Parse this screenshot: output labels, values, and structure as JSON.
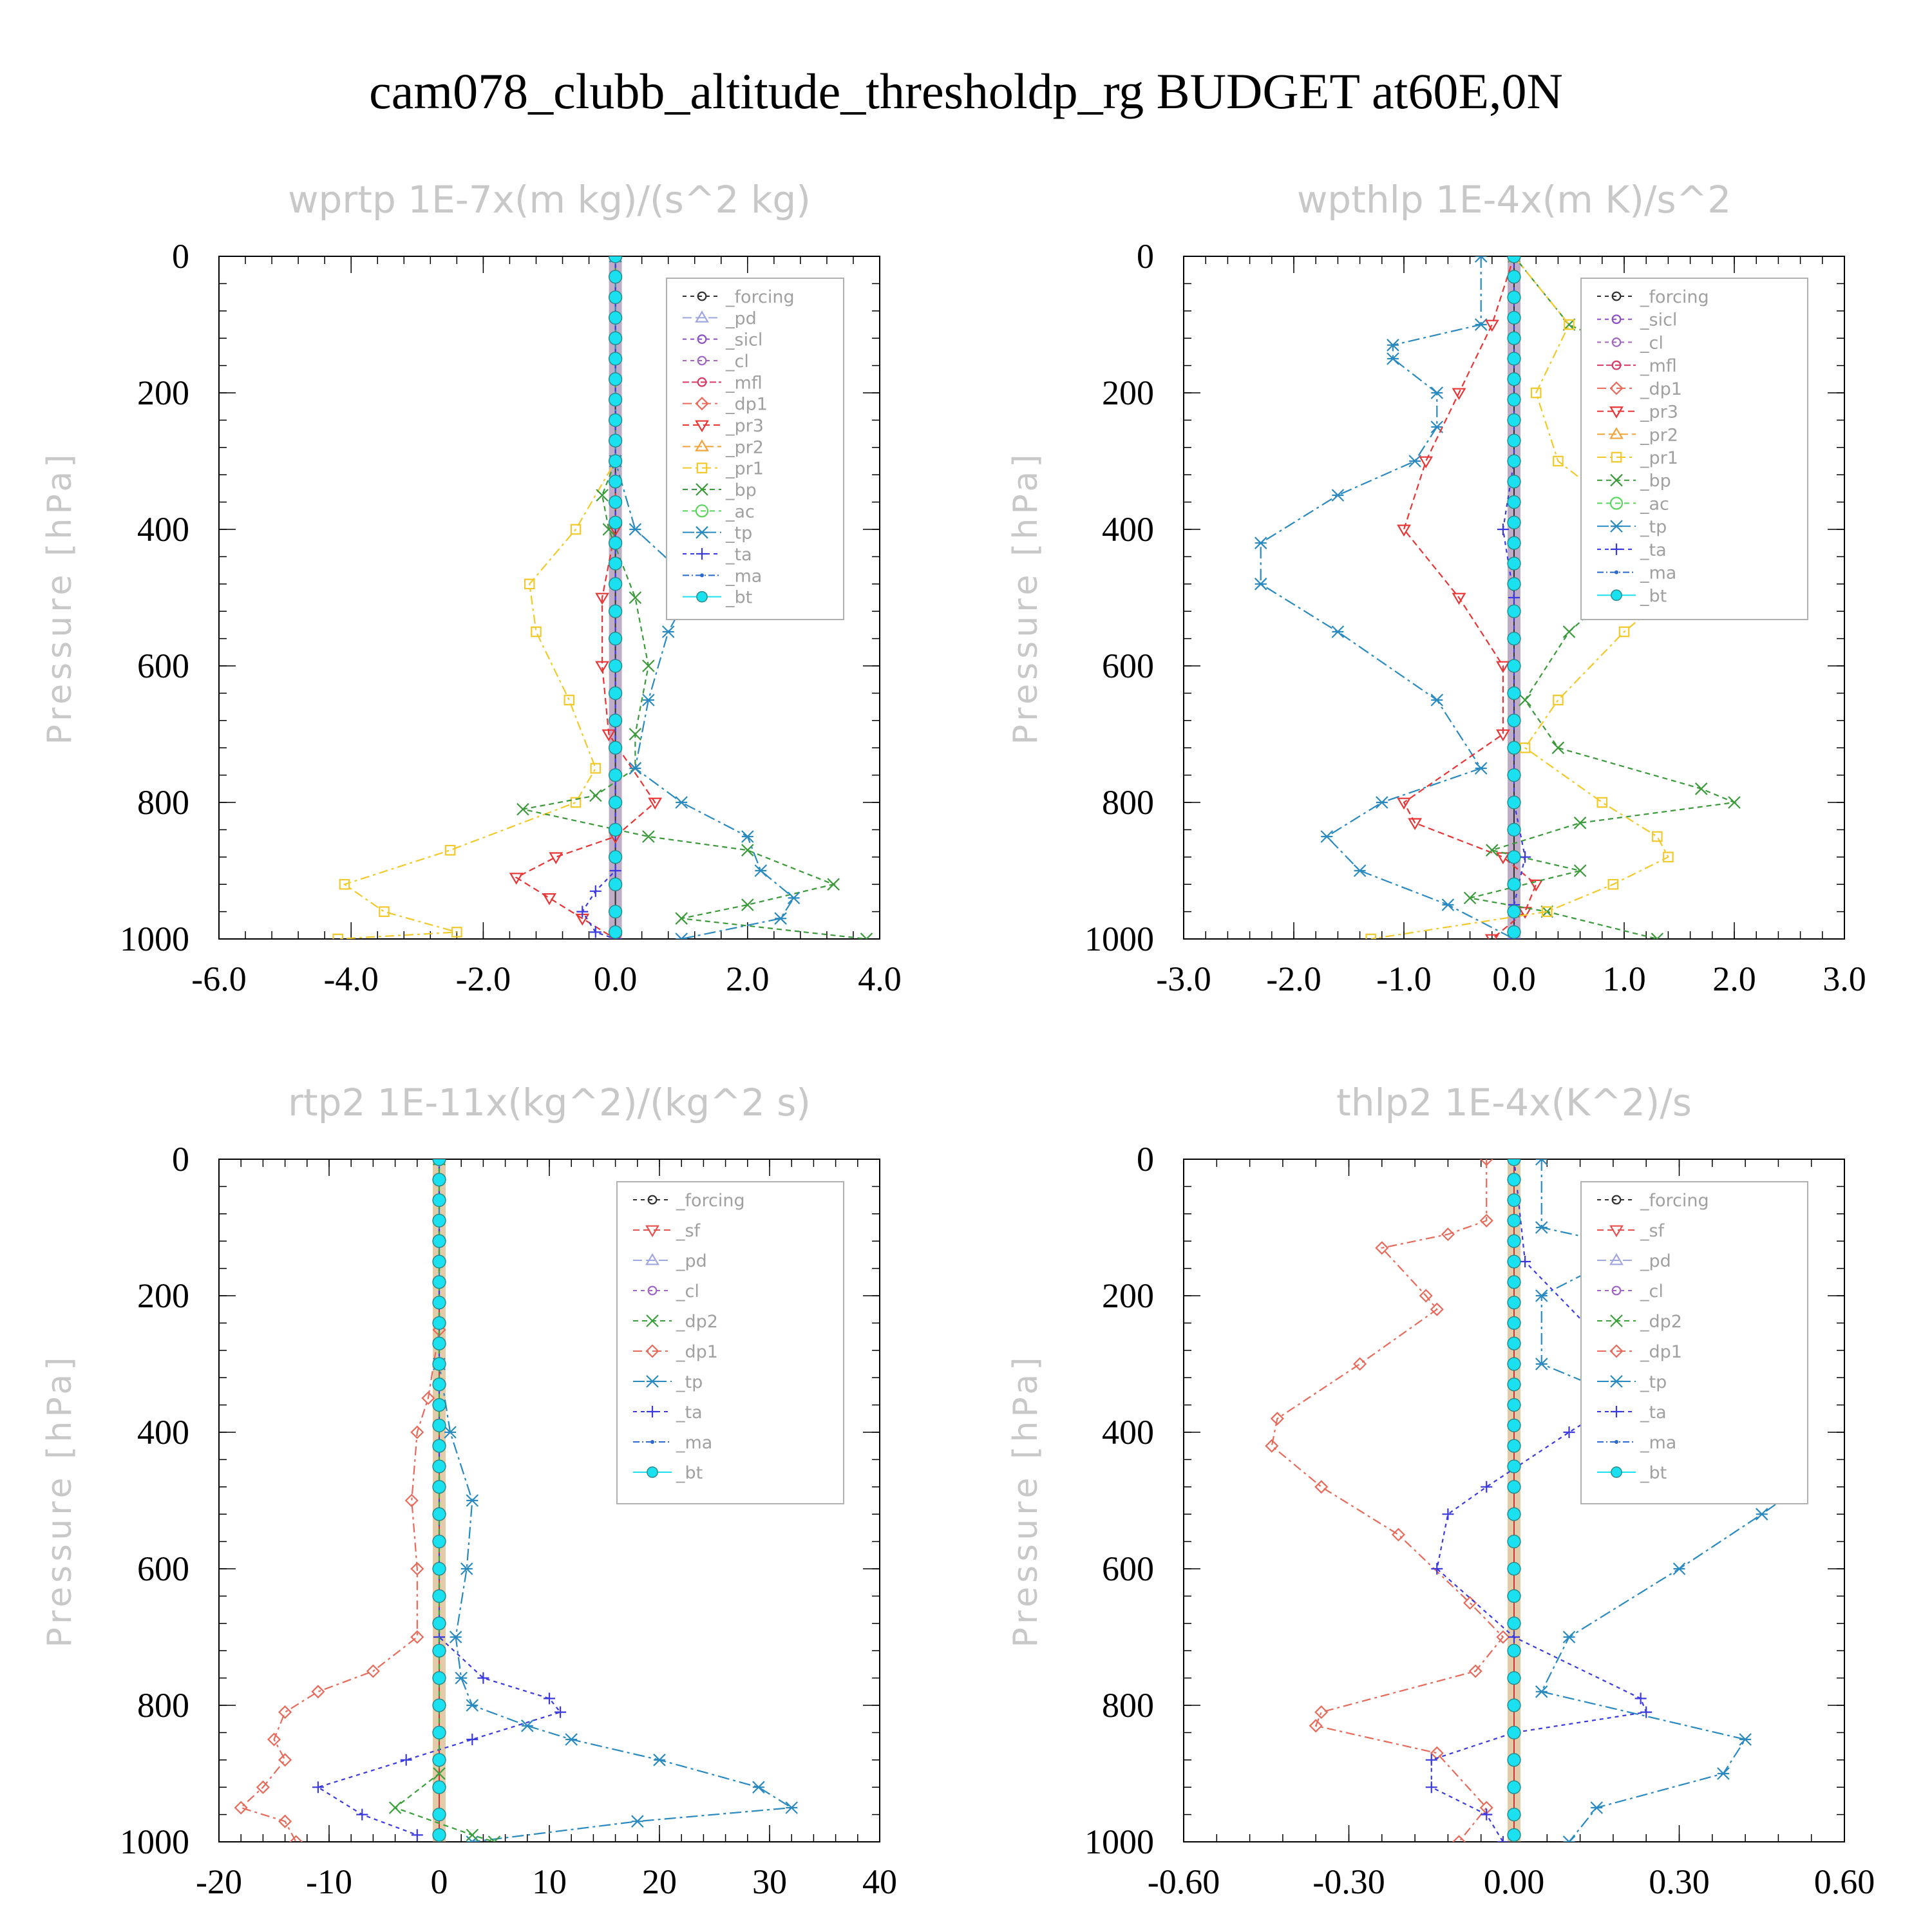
{
  "title": "cam078_clubb_altitude_thresholdp_rg  BUDGET at60E,0N",
  "colors": {
    "_forcing": "#303030",
    "_pd": "#9fa6e0",
    "_sicl": "#8c4fc4",
    "_cl": "#a066c0",
    "_mfl": "#d83a66",
    "_dp1": "#e86a5a",
    "_pr3": "#e83535",
    "_pr2": "#f2a33a",
    "_pr1": "#f2c92a",
    "_bp": "#3a9a3a",
    "_ac": "#5ad45a",
    "_tp": "#2a8ac0",
    "_ta": "#3a3ae0",
    "_ma": "#2a6ad0",
    "_bt": "#1ae0f0",
    "_sf": "#e85050",
    "_dp2": "#3aa03a"
  },
  "chart_data": [
    {
      "type": "line",
      "title": "wprtp  1E-7x(m kg)/(s^2 kg)",
      "xlabel": "",
      "ylabel": "Pressure [hPa]",
      "xlim": [
        -6,
        4
      ],
      "ylim": [
        0,
        1000
      ],
      "y_inverted": true,
      "xticks": [
        -6,
        -4,
        -2,
        0,
        2,
        4
      ],
      "xtick_labels": [
        "-6.0",
        "-4.0",
        "-2.0",
        "0.0",
        "2.0",
        "4.0"
      ],
      "yticks": [
        0,
        200,
        400,
        600,
        800,
        1000
      ],
      "ytick_labels": [
        "0",
        "200",
        "400",
        "600",
        "800",
        "1000"
      ],
      "legend_position": "top-right",
      "legend": [
        "_forcing",
        "_pd",
        "_sicl",
        "_cl",
        "_mfl",
        "_dp1",
        "_pr3",
        "_pr2",
        "_pr1",
        "_bp",
        "_ac",
        "_tp",
        "_ta",
        "_ma",
        "_bt"
      ],
      "series": [
        {
          "name": "_pr1",
          "y": [
            0,
            300,
            400,
            480,
            550,
            650,
            750,
            800,
            870,
            920,
            960,
            990,
            1000
          ],
          "x": [
            0,
            0,
            -0.6,
            -1.3,
            -1.2,
            -0.7,
            -0.3,
            -0.6,
            -2.5,
            -4.1,
            -3.5,
            -2.4,
            -4.2
          ]
        },
        {
          "name": "_pr3",
          "y": [
            0,
            400,
            500,
            600,
            700,
            800,
            850,
            880,
            910,
            940,
            970,
            1000
          ],
          "x": [
            0,
            0,
            -0.2,
            -0.2,
            -0.1,
            0.6,
            0,
            -0.9,
            -1.5,
            -1.0,
            -0.5,
            0
          ]
        },
        {
          "name": "_bp",
          "y": [
            0,
            300,
            350,
            400,
            500,
            600,
            700,
            750,
            790,
            810,
            850,
            870,
            920,
            950,
            970,
            1000
          ],
          "x": [
            0,
            0,
            -0.2,
            -0.1,
            0.3,
            0.5,
            0.3,
            0.3,
            -0.3,
            -1.4,
            0.5,
            2.0,
            3.3,
            2.0,
            1.0,
            3.8
          ]
        },
        {
          "name": "_tp",
          "y": [
            0,
            300,
            400,
            480,
            550,
            650,
            750,
            800,
            850,
            900,
            940,
            970,
            1000
          ],
          "x": [
            0,
            0,
            0.3,
            1.2,
            0.8,
            0.5,
            0.3,
            1.0,
            2.0,
            2.2,
            2.7,
            2.5,
            1.0
          ]
        },
        {
          "name": "_ta",
          "y": [
            0,
            900,
            930,
            960,
            990,
            1000
          ],
          "x": [
            0,
            0,
            -0.3,
            -0.5,
            -0.3,
            0
          ]
        },
        {
          "name": "_bt",
          "y": [
            0,
            30,
            60,
            90,
            120,
            150,
            180,
            210,
            240,
            270,
            300,
            330,
            360,
            390,
            420,
            450,
            480,
            520,
            560,
            600,
            640,
            680,
            720,
            760,
            800,
            840,
            880,
            920,
            960,
            990
          ],
          "x": [
            0,
            0,
            0,
            0,
            0,
            0,
            0,
            0,
            0,
            0,
            0,
            0,
            0,
            0,
            0,
            0,
            0,
            0,
            0,
            0,
            0,
            0,
            0,
            0,
            0,
            0,
            0,
            0,
            0,
            0
          ]
        }
      ]
    },
    {
      "type": "line",
      "title": "wpthlp  1E-4x(m K)/s^2",
      "xlabel": "",
      "ylabel": "Pressure [hPa]",
      "xlim": [
        -3,
        3
      ],
      "ylim": [
        0,
        1000
      ],
      "y_inverted": true,
      "xticks": [
        -3,
        -2,
        -1,
        0,
        1,
        2,
        3
      ],
      "xtick_labels": [
        "-3.0",
        "-2.0",
        "-1.0",
        "0.0",
        "1.0",
        "2.0",
        "3.0"
      ],
      "yticks": [
        0,
        200,
        400,
        600,
        800,
        1000
      ],
      "ytick_labels": [
        "0",
        "200",
        "400",
        "600",
        "800",
        "1000"
      ],
      "legend_position": "top-right",
      "legend": [
        "_forcing",
        "_sicl",
        "_cl",
        "_mfl",
        "_dp1",
        "_pr3",
        "_pr2",
        "_pr1",
        "_bp",
        "_ac",
        "_tp",
        "_ta",
        "_ma",
        "_bt"
      ],
      "series": [
        {
          "name": "_tp",
          "y": [
            0,
            100,
            130,
            150,
            200,
            250,
            300,
            350,
            420,
            480,
            550,
            650,
            750,
            800,
            850,
            900,
            950,
            1000
          ],
          "x": [
            -0.3,
            -0.3,
            -1.1,
            -1.1,
            -0.7,
            -0.7,
            -0.9,
            -1.6,
            -2.3,
            -2.3,
            -1.6,
            -0.7,
            -0.3,
            -1.2,
            -1.7,
            -1.4,
            -0.6,
            0
          ]
        },
        {
          "name": "_pr3",
          "y": [
            0,
            100,
            200,
            300,
            400,
            500,
            600,
            700,
            800,
            830,
            880,
            920,
            960,
            1000
          ],
          "x": [
            0,
            -0.2,
            -0.5,
            -0.8,
            -1.0,
            -0.5,
            -0.1,
            -0.1,
            -1.0,
            -0.9,
            -0.1,
            0.2,
            0.1,
            -0.2
          ]
        },
        {
          "name": "_bp",
          "y": [
            0,
            100,
            130,
            200,
            300,
            390,
            450,
            550,
            650,
            720,
            780,
            800,
            830,
            870,
            900,
            940,
            960,
            1000
          ],
          "x": [
            0,
            0.5,
            0.9,
            0.8,
            1.3,
            2.1,
            1.2,
            0.5,
            0.1,
            0.4,
            1.7,
            2.0,
            0.6,
            -0.2,
            0.6,
            -0.4,
            0.3,
            1.3
          ]
        },
        {
          "name": "_pr1",
          "y": [
            0,
            100,
            200,
            300,
            400,
            470,
            550,
            650,
            720,
            800,
            850,
            880,
            920,
            960,
            1000
          ],
          "x": [
            0,
            0.5,
            0.2,
            0.4,
            1.2,
            1.6,
            1.0,
            0.4,
            0.1,
            0.8,
            1.3,
            1.4,
            0.9,
            0.3,
            -1.3
          ]
        },
        {
          "name": "_ta",
          "y": [
            0,
            300,
            400,
            500,
            800,
            880,
            950,
            1000
          ],
          "x": [
            0,
            0,
            -0.1,
            0,
            0,
            0.1,
            0,
            0
          ]
        },
        {
          "name": "_bt",
          "y": [
            0,
            30,
            60,
            90,
            120,
            150,
            180,
            210,
            240,
            270,
            300,
            330,
            360,
            390,
            420,
            450,
            480,
            520,
            560,
            600,
            640,
            680,
            720,
            760,
            800,
            840,
            880,
            920,
            960,
            990
          ],
          "x": [
            0,
            0,
            0,
            0,
            0,
            0,
            0,
            0,
            0,
            0,
            0,
            0,
            0,
            0,
            0,
            0,
            0,
            0,
            0,
            0,
            0,
            0,
            0,
            0,
            0,
            0,
            0,
            0,
            0,
            0
          ]
        }
      ]
    },
    {
      "type": "line",
      "title": "rtp2  1E-11x(kg^2)/(kg^2 s)",
      "xlabel": "",
      "ylabel": "Pressure [hPa]",
      "xlim": [
        -20,
        40
      ],
      "ylim": [
        0,
        1000
      ],
      "y_inverted": true,
      "xticks": [
        -20,
        -10,
        0,
        10,
        20,
        30,
        40
      ],
      "xtick_labels": [
        "-20",
        "-10",
        "0",
        "10",
        "20",
        "30",
        "40"
      ],
      "yticks": [
        0,
        200,
        400,
        600,
        800,
        1000
      ],
      "ytick_labels": [
        "0",
        "200",
        "400",
        "600",
        "800",
        "1000"
      ],
      "legend_position": "top-right",
      "legend": [
        "_forcing",
        "_sf",
        "_pd",
        "_cl",
        "_dp2",
        "_dp1",
        "_tp",
        "_ta",
        "_ma",
        "_bt"
      ],
      "series": [
        {
          "name": "_dp1",
          "y": [
            0,
            250,
            350,
            400,
            500,
            600,
            700,
            750,
            780,
            810,
            850,
            880,
            920,
            950,
            970,
            1000
          ],
          "x": [
            0,
            0,
            -1.0,
            -2.0,
            -2.5,
            -2.0,
            -2.0,
            -6.0,
            -11.0,
            -14.0,
            -15.0,
            -14.0,
            -16.0,
            -18.0,
            -14.0,
            -13.0
          ]
        },
        {
          "name": "_tp",
          "y": [
            0,
            300,
            400,
            500,
            600,
            700,
            760,
            800,
            830,
            850,
            880,
            920,
            950,
            970,
            1000
          ],
          "x": [
            0,
            0,
            1.0,
            3.0,
            2.5,
            1.5,
            2.0,
            3.0,
            8.0,
            12.0,
            20.0,
            29.0,
            32.0,
            18.0,
            3.0
          ]
        },
        {
          "name": "_ta",
          "y": [
            0,
            700,
            760,
            790,
            810,
            850,
            880,
            920,
            960,
            990
          ],
          "x": [
            0,
            0,
            4.0,
            10.0,
            11.0,
            3.0,
            -3.0,
            -11.0,
            -7.0,
            -2.0
          ]
        },
        {
          "name": "_dp2",
          "y": [
            0,
            900,
            950,
            990,
            1000
          ],
          "x": [
            0,
            0,
            -4.0,
            3.0,
            5.0
          ]
        },
        {
          "name": "_bt",
          "y": [
            0,
            30,
            60,
            90,
            120,
            150,
            180,
            210,
            240,
            270,
            300,
            330,
            360,
            390,
            420,
            450,
            480,
            520,
            560,
            600,
            640,
            680,
            720,
            760,
            800,
            840,
            880,
            920,
            960,
            990
          ],
          "x": [
            0,
            0,
            0,
            0,
            0,
            0,
            0,
            0,
            0,
            0,
            0,
            0,
            0,
            0,
            0,
            0,
            0,
            0,
            0,
            0,
            0,
            0,
            0,
            0,
            0,
            0,
            0,
            0,
            0,
            0
          ]
        }
      ]
    },
    {
      "type": "line",
      "title": "thlp2  1E-4x(K^2)/s",
      "xlabel": "",
      "ylabel": "Pressure [hPa]",
      "xlim": [
        -0.6,
        0.6
      ],
      "ylim": [
        0,
        1000
      ],
      "y_inverted": true,
      "xticks": [
        -0.6,
        -0.3,
        0,
        0.3,
        0.6
      ],
      "xtick_labels": [
        "-0.60",
        "-0.30",
        "0.00",
        "0.30",
        "0.60"
      ],
      "yticks": [
        0,
        200,
        400,
        600,
        800,
        1000
      ],
      "ytick_labels": [
        "0",
        "200",
        "400",
        "600",
        "800",
        "1000"
      ],
      "legend_position": "top-right",
      "legend": [
        "_forcing",
        "_sf",
        "_pd",
        "_cl",
        "_dp2",
        "_dp1",
        "_tp",
        "_ta",
        "_ma",
        "_bt"
      ],
      "series": [
        {
          "name": "_dp1",
          "y": [
            0,
            90,
            110,
            130,
            200,
            220,
            300,
            380,
            420,
            480,
            550,
            650,
            700,
            750,
            810,
            830,
            870,
            950,
            1000
          ],
          "x": [
            -0.05,
            -0.05,
            -0.12,
            -0.24,
            -0.16,
            -0.14,
            -0.28,
            -0.43,
            -0.44,
            -0.35,
            -0.21,
            -0.08,
            -0.02,
            -0.07,
            -0.35,
            -0.36,
            -0.14,
            -0.05,
            -0.1
          ]
        },
        {
          "name": "_tp",
          "y": [
            0,
            100,
            130,
            200,
            300,
            350,
            400,
            430,
            480,
            520,
            600,
            700,
            780,
            850,
            900,
            950,
            1000
          ],
          "x": [
            0.05,
            0.05,
            0.22,
            0.05,
            0.05,
            0.2,
            0.35,
            0.45,
            0.52,
            0.45,
            0.3,
            0.1,
            0.05,
            0.42,
            0.38,
            0.15,
            0.1
          ]
        },
        {
          "name": "_ta",
          "y": [
            0,
            150,
            250,
            350,
            400,
            480,
            520,
            600,
            700,
            790,
            810,
            840,
            880,
            920,
            960,
            1000
          ],
          "x": [
            0,
            0.02,
            0.14,
            0.2,
            0.1,
            -0.05,
            -0.12,
            -0.14,
            0,
            0.23,
            0.24,
            0,
            -0.15,
            -0.15,
            -0.05,
            -0.02
          ]
        },
        {
          "name": "_bt",
          "y": [
            0,
            30,
            60,
            90,
            120,
            150,
            180,
            210,
            240,
            270,
            300,
            330,
            360,
            390,
            420,
            450,
            480,
            520,
            560,
            600,
            640,
            680,
            720,
            760,
            800,
            840,
            880,
            920,
            960,
            990
          ],
          "x": [
            0,
            0,
            0,
            0,
            0,
            0,
            0,
            0,
            0,
            0,
            0,
            0,
            0,
            0,
            0,
            0,
            0,
            0,
            0,
            0,
            0,
            0,
            0,
            0,
            0,
            0,
            0,
            0,
            0,
            0
          ]
        }
      ]
    }
  ]
}
